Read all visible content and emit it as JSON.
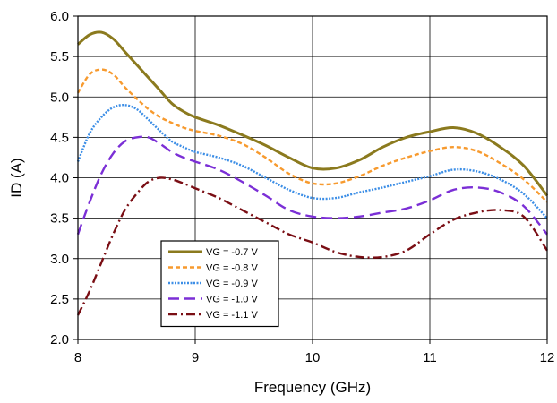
{
  "chart_data": {
    "type": "line",
    "title": "",
    "xlabel": "Frequency (GHz)",
    "ylabel": "ID (A)",
    "xlim": [
      8,
      12
    ],
    "ylim": [
      2.0,
      6.0
    ],
    "xticks": [
      "8",
      "9",
      "10",
      "11",
      "12"
    ],
    "yticks": [
      "2.0",
      "2.5",
      "3.0",
      "3.5",
      "4.0",
      "4.5",
      "5.0",
      "5.5",
      "6.0"
    ],
    "grid": true,
    "legend_position": "bottom-left (inside plot)",
    "series": [
      {
        "name": "VG = -0.7 V",
        "color": "#8B7A1E",
        "line_style": "solid",
        "x": [
          8.0,
          8.1,
          8.2,
          8.3,
          8.4,
          8.5,
          8.6,
          8.7,
          8.8,
          8.9,
          9.0,
          9.2,
          9.4,
          9.6,
          9.8,
          10.0,
          10.2,
          10.4,
          10.6,
          10.8,
          11.0,
          11.2,
          11.4,
          11.6,
          11.8,
          12.0
        ],
        "y": [
          5.65,
          5.77,
          5.8,
          5.72,
          5.56,
          5.4,
          5.24,
          5.08,
          4.92,
          4.82,
          4.75,
          4.65,
          4.53,
          4.4,
          4.25,
          4.12,
          4.12,
          4.22,
          4.38,
          4.5,
          4.57,
          4.62,
          4.55,
          4.38,
          4.15,
          3.78
        ]
      },
      {
        "name": "VG = -0.8 V",
        "color": "#F79A2E",
        "line_style": "dashed",
        "x": [
          8.0,
          8.1,
          8.2,
          8.3,
          8.4,
          8.5,
          8.6,
          8.7,
          8.8,
          8.9,
          9.0,
          9.2,
          9.4,
          9.6,
          9.8,
          10.0,
          10.2,
          10.4,
          10.6,
          10.8,
          11.0,
          11.2,
          11.4,
          11.6,
          11.8,
          12.0
        ],
        "y": [
          5.05,
          5.28,
          5.34,
          5.28,
          5.12,
          4.98,
          4.85,
          4.75,
          4.68,
          4.62,
          4.58,
          4.52,
          4.42,
          4.25,
          4.05,
          3.93,
          3.93,
          4.02,
          4.15,
          4.25,
          4.33,
          4.38,
          4.33,
          4.18,
          3.98,
          3.7
        ]
      },
      {
        "name": "VG = -0.9 V",
        "color": "#3C8EE6",
        "line_style": "dotted",
        "x": [
          8.0,
          8.1,
          8.2,
          8.3,
          8.4,
          8.5,
          8.6,
          8.7,
          8.8,
          8.9,
          9.0,
          9.2,
          9.4,
          9.6,
          9.8,
          10.0,
          10.2,
          10.4,
          10.6,
          10.8,
          11.0,
          11.2,
          11.4,
          11.6,
          11.8,
          12.0
        ],
        "y": [
          4.2,
          4.55,
          4.75,
          4.87,
          4.9,
          4.85,
          4.72,
          4.58,
          4.45,
          4.38,
          4.32,
          4.25,
          4.15,
          4.0,
          3.85,
          3.75,
          3.75,
          3.82,
          3.88,
          3.95,
          4.02,
          4.1,
          4.08,
          3.98,
          3.8,
          3.5
        ]
      },
      {
        "name": "VG = -1.0 V",
        "color": "#7B2FD6",
        "line_style": "long-dash",
        "x": [
          8.0,
          8.1,
          8.2,
          8.3,
          8.4,
          8.5,
          8.6,
          8.7,
          8.8,
          8.9,
          9.0,
          9.2,
          9.4,
          9.6,
          9.8,
          10.0,
          10.2,
          10.4,
          10.6,
          10.8,
          11.0,
          11.2,
          11.4,
          11.6,
          11.8,
          12.0
        ],
        "y": [
          3.3,
          3.7,
          4.05,
          4.3,
          4.45,
          4.5,
          4.5,
          4.42,
          4.32,
          4.25,
          4.2,
          4.1,
          3.95,
          3.78,
          3.6,
          3.52,
          3.5,
          3.52,
          3.57,
          3.62,
          3.72,
          3.85,
          3.88,
          3.82,
          3.65,
          3.3
        ]
      },
      {
        "name": "VG = -1.1 V",
        "color": "#7A0E14",
        "line_style": "dash-dot",
        "x": [
          8.0,
          8.1,
          8.2,
          8.3,
          8.4,
          8.5,
          8.6,
          8.7,
          8.8,
          8.9,
          9.0,
          9.2,
          9.4,
          9.6,
          9.8,
          10.0,
          10.2,
          10.4,
          10.6,
          10.8,
          11.0,
          11.2,
          11.4,
          11.6,
          11.8,
          12.0
        ],
        "y": [
          2.3,
          2.6,
          2.95,
          3.3,
          3.6,
          3.8,
          3.95,
          4.0,
          3.98,
          3.93,
          3.87,
          3.75,
          3.6,
          3.45,
          3.3,
          3.2,
          3.08,
          3.02,
          3.02,
          3.1,
          3.3,
          3.48,
          3.57,
          3.6,
          3.52,
          3.1
        ]
      }
    ]
  }
}
